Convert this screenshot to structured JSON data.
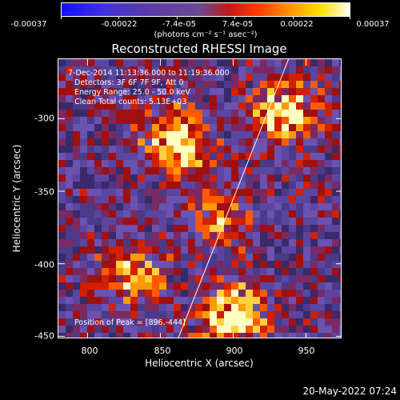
{
  "colorbar": {
    "ticks": [
      "-0.00037",
      "-0.00022",
      "-7.4e-05",
      "7.4e-05",
      "0.00022",
      "0.00037"
    ],
    "units": "(photons cm⁻² s⁻¹ asec⁻²)"
  },
  "title": "Reconstructed RHESSI Image",
  "info": {
    "time": "7-Dec-2014 11:13:36.000 to 11:19:36.000",
    "detectors": "Detectors: 3F 6F 7F 9F, Att 0",
    "energy": "Energy Range: 25.0 - 50.0 keV",
    "clean": "Clean     Total counts: 5.13E+03",
    "peak": "Position of Peak = [896,-444]"
  },
  "chart_data": {
    "type": "heatmap",
    "title": "Reconstructed RHESSI Image",
    "xlabel": "Heliocentric X (arcsec)",
    "ylabel": "Heliocentric Y (arcsec)",
    "xlim": [
      780,
      975
    ],
    "ylim": [
      -452,
      -259
    ],
    "xticks": [
      "800",
      "850",
      "900",
      "950"
    ],
    "yticks": [
      "-300",
      "-350",
      "-400",
      "-450"
    ],
    "colorbar_range": [
      -0.00037,
      0.00037
    ],
    "peak": [
      896,
      -444
    ],
    "limb_line": [
      [
        862,
        -452
      ],
      [
        938,
        -259
      ]
    ]
  },
  "timestamp": "20-May-2022 07:24"
}
